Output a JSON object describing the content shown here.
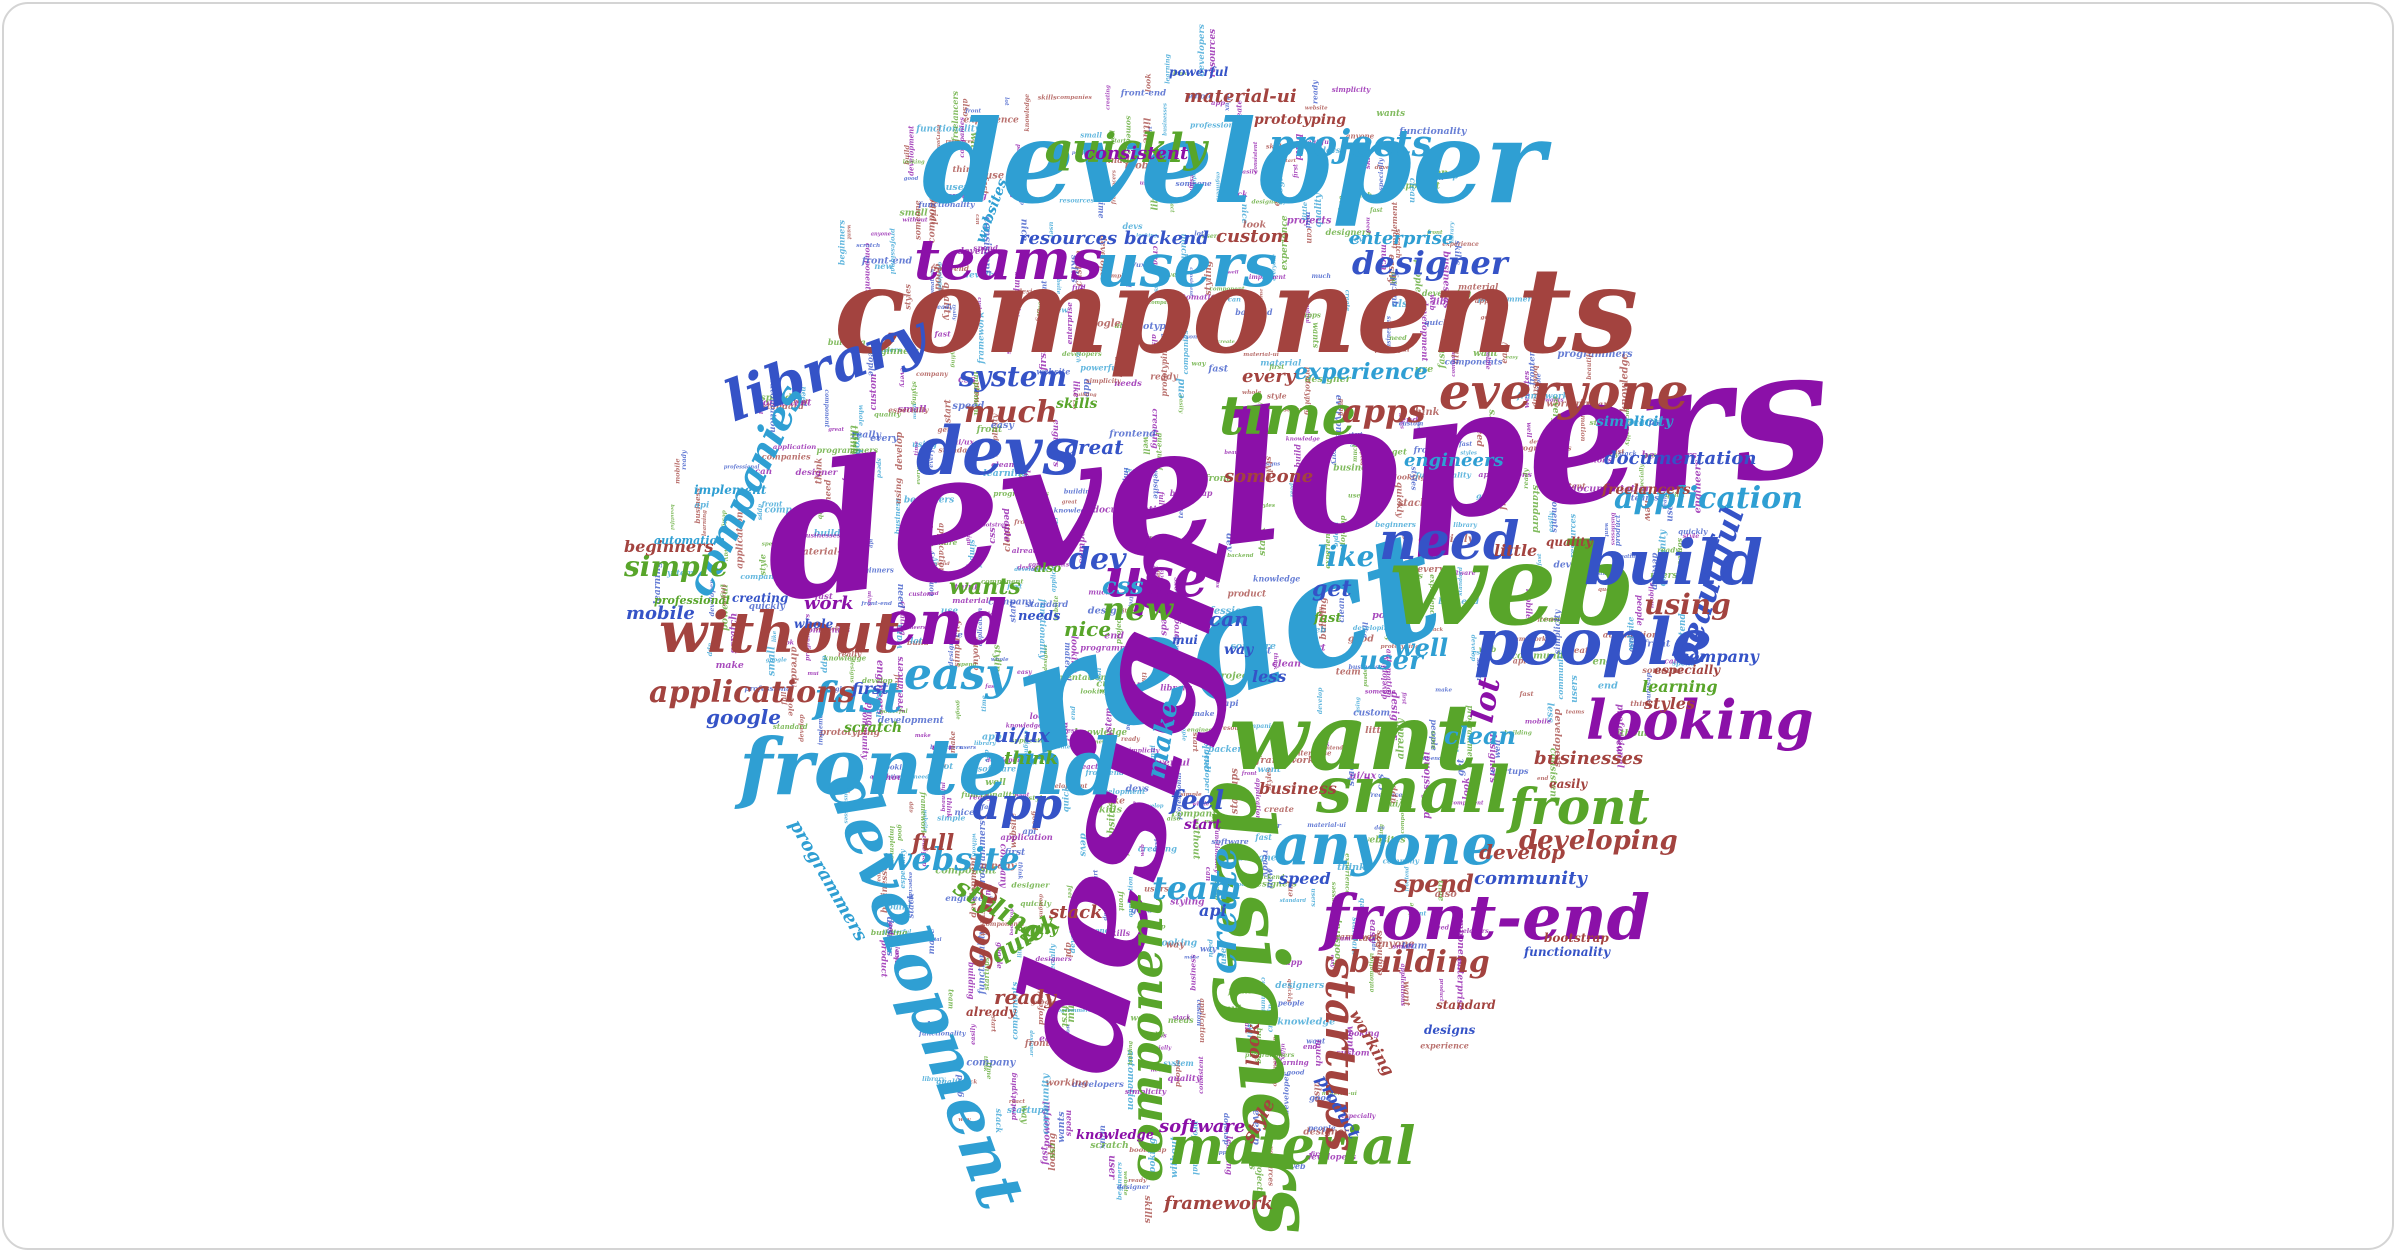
{
  "palette": {
    "purple": "#8b10a8",
    "blue": "#2f9fd3",
    "red": "#a3433f",
    "navy": "#3553c7",
    "green": "#58a52a"
  },
  "words": [
    {
      "text": "developers",
      "color": "purple"
    },
    {
      "text": "react",
      "color": "blue"
    },
    {
      "text": "components",
      "color": "red"
    },
    {
      "text": "developer",
      "color": "blue"
    },
    {
      "text": "design",
      "color": "purple"
    },
    {
      "text": "web",
      "color": "green"
    },
    {
      "text": "want",
      "color": "green"
    },
    {
      "text": "frontend",
      "color": "blue"
    },
    {
      "text": "designers",
      "color": "green"
    },
    {
      "text": "development",
      "color": "blue"
    },
    {
      "text": "people",
      "color": "navy"
    },
    {
      "text": "devs",
      "color": "navy"
    },
    {
      "text": "build",
      "color": "navy"
    },
    {
      "text": "end",
      "color": "purple"
    },
    {
      "text": "without",
      "color": "red"
    },
    {
      "text": "front-end",
      "color": "purple"
    },
    {
      "text": "small",
      "color": "green"
    },
    {
      "text": "anyone",
      "color": "blue"
    },
    {
      "text": "looking",
      "color": "purple"
    },
    {
      "text": "users",
      "color": "blue"
    },
    {
      "text": "teams",
      "color": "purple"
    },
    {
      "text": "library",
      "color": "navy"
    },
    {
      "text": "time",
      "color": "green"
    },
    {
      "text": "use",
      "color": "purple"
    },
    {
      "text": "need",
      "color": "navy"
    },
    {
      "text": "everyone",
      "color": "red"
    },
    {
      "text": "component",
      "color": "green"
    },
    {
      "text": "material",
      "color": "green"
    },
    {
      "text": "front",
      "color": "green"
    },
    {
      "text": "startups",
      "color": "red"
    },
    {
      "text": "easy",
      "color": "blue"
    },
    {
      "text": "app",
      "color": "navy"
    },
    {
      "text": "fast",
      "color": "blue"
    },
    {
      "text": "create",
      "color": "blue"
    },
    {
      "text": "quickly",
      "color": "green"
    },
    {
      "text": "projects",
      "color": "blue"
    },
    {
      "text": "companies",
      "color": "blue"
    },
    {
      "text": "beautiful",
      "color": "navy"
    },
    {
      "text": "applications",
      "color": "red"
    },
    {
      "text": "application",
      "color": "blue"
    },
    {
      "text": "designer",
      "color": "navy"
    },
    {
      "text": "website",
      "color": "blue"
    },
    {
      "text": "much",
      "color": "red"
    },
    {
      "text": "building",
      "color": "red"
    },
    {
      "text": "good",
      "color": "red"
    },
    {
      "text": "apps",
      "color": "red"
    },
    {
      "text": "new",
      "color": "green"
    },
    {
      "text": "dev",
      "color": "navy"
    },
    {
      "text": "like",
      "color": "blue"
    },
    {
      "text": "team",
      "color": "blue"
    },
    {
      "text": "system",
      "color": "navy"
    },
    {
      "text": "simple",
      "color": "green"
    },
    {
      "text": "lot",
      "color": "purple"
    },
    {
      "text": "using",
      "color": "red"
    },
    {
      "text": "make",
      "color": "blue"
    },
    {
      "text": "styling",
      "color": "green"
    },
    {
      "text": "developing",
      "color": "red"
    },
    {
      "text": "experience",
      "color": "blue"
    },
    {
      "text": "user",
      "color": "blue"
    },
    {
      "text": "get",
      "color": "navy"
    },
    {
      "text": "css",
      "color": "blue"
    },
    {
      "text": "feel",
      "color": "navy"
    },
    {
      "text": "quick",
      "color": "green"
    },
    {
      "text": "spend",
      "color": "red"
    },
    {
      "text": "well",
      "color": "blue"
    },
    {
      "text": "clean",
      "color": "blue"
    },
    {
      "text": "resources",
      "color": "navy"
    },
    {
      "text": "backend",
      "color": "navy"
    },
    {
      "text": "enterprise",
      "color": "blue"
    },
    {
      "text": "consistent",
      "color": "purple"
    },
    {
      "text": "material-ui",
      "color": "red"
    },
    {
      "text": "great",
      "color": "navy"
    },
    {
      "text": "programmers",
      "color": "blue"
    },
    {
      "text": "framework",
      "color": "red"
    },
    {
      "text": "google",
      "color": "navy"
    },
    {
      "text": "businesses",
      "color": "red"
    },
    {
      "text": "community",
      "color": "navy"
    },
    {
      "text": "documentation",
      "color": "navy"
    },
    {
      "text": "full",
      "color": "red"
    },
    {
      "text": "mobile",
      "color": "navy"
    },
    {
      "text": "work",
      "color": "purple"
    },
    {
      "text": "wants",
      "color": "green"
    },
    {
      "text": "beginners",
      "color": "red"
    },
    {
      "text": "someone",
      "color": "red"
    },
    {
      "text": "custom",
      "color": "red"
    },
    {
      "text": "every",
      "color": "red"
    },
    {
      "text": "develop",
      "color": "red"
    },
    {
      "text": "ui/ux",
      "color": "navy"
    },
    {
      "text": "think",
      "color": "green"
    },
    {
      "text": "engineers",
      "color": "blue"
    },
    {
      "text": "stack",
      "color": "red"
    },
    {
      "text": "ready",
      "color": "red"
    },
    {
      "text": "company",
      "color": "navy"
    },
    {
      "text": "software",
      "color": "purple"
    },
    {
      "text": "nice",
      "color": "green"
    },
    {
      "text": "can",
      "color": "navy"
    },
    {
      "text": "look",
      "color": "red"
    },
    {
      "text": "style",
      "color": "red"
    },
    {
      "text": "api",
      "color": "navy"
    },
    {
      "text": "speed",
      "color": "navy"
    },
    {
      "text": "business",
      "color": "red"
    },
    {
      "text": "styles",
      "color": "red"
    },
    {
      "text": "learning",
      "color": "green"
    },
    {
      "text": "product",
      "color": "navy"
    },
    {
      "text": "working",
      "color": "red"
    },
    {
      "text": "less",
      "color": "navy"
    },
    {
      "text": "first",
      "color": "navy"
    },
    {
      "text": "skills",
      "color": "green"
    },
    {
      "text": "knowledge",
      "color": "purple"
    },
    {
      "text": "scratch",
      "color": "green"
    },
    {
      "text": "really",
      "color": "green"
    },
    {
      "text": "start",
      "color": "purple"
    },
    {
      "text": "simplicity",
      "color": "blue"
    },
    {
      "text": "freelancers",
      "color": "red"
    },
    {
      "text": "websites",
      "color": "blue"
    },
    {
      "text": "prototyping",
      "color": "red"
    },
    {
      "text": "powerful",
      "color": "navy"
    },
    {
      "text": "quality",
      "color": "red"
    },
    {
      "text": "little",
      "color": "red"
    },
    {
      "text": "especially",
      "color": "red"
    },
    {
      "text": "needs",
      "color": "navy"
    },
    {
      "text": "way",
      "color": "navy"
    },
    {
      "text": "fast",
      "color": "green"
    },
    {
      "text": "also",
      "color": "green"
    },
    {
      "text": "functionality",
      "color": "navy"
    },
    {
      "text": "bootstrap",
      "color": "red"
    },
    {
      "text": "automation",
      "color": "blue"
    },
    {
      "text": "implement",
      "color": "blue"
    },
    {
      "text": "creating",
      "color": "navy"
    },
    {
      "text": "whole",
      "color": "navy"
    },
    {
      "text": "easily",
      "color": "red"
    },
    {
      "text": "designs",
      "color": "navy"
    },
    {
      "text": "standard",
      "color": "red"
    },
    {
      "text": "already",
      "color": "red"
    },
    {
      "text": "mui",
      "color": "navy"
    },
    {
      "text": "professional",
      "color": "green"
    }
  ]
}
